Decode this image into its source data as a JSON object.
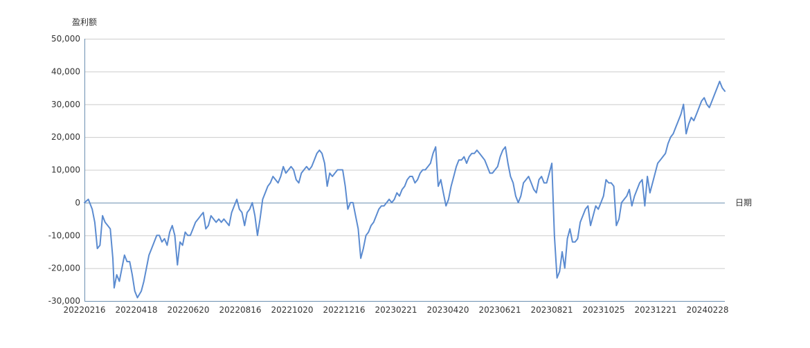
{
  "chart_data": {
    "type": "line",
    "xlabel": "日期",
    "ylabel": "盈利额",
    "ylim": [
      -30000,
      50000
    ],
    "yticks": [
      -30000,
      -20000,
      -10000,
      0,
      10000,
      20000,
      30000,
      40000,
      50000
    ],
    "ytick_labels": [
      "-30,000",
      "-20,000",
      "-10,000",
      "0",
      "10,000",
      "20,000",
      "30,000",
      "40,000",
      "50,000"
    ],
    "xtick_labels": [
      "20220216",
      "20220418",
      "20220620",
      "20220816",
      "20221020",
      "20221216",
      "20230221",
      "20230420",
      "20230621",
      "20230821",
      "20231025",
      "20231221",
      "20240228"
    ],
    "x_count": 496,
    "grid": true,
    "colors": {
      "line": "#5b8bd0",
      "axis": "#6b8fb0",
      "grid": "#cccccc"
    },
    "series": [
      {
        "points": [
          [
            0,
            0
          ],
          [
            3,
            1000
          ],
          [
            6,
            -2000
          ],
          [
            8,
            -6000
          ],
          [
            10,
            -14000
          ],
          [
            12,
            -13000
          ],
          [
            14,
            -4000
          ],
          [
            16,
            -6000
          ],
          [
            18,
            -7000
          ],
          [
            20,
            -8000
          ],
          [
            22,
            -17000
          ],
          [
            23,
            -26000
          ],
          [
            25,
            -22000
          ],
          [
            27,
            -24000
          ],
          [
            29,
            -20000
          ],
          [
            31,
            -16000
          ],
          [
            33,
            -18000
          ],
          [
            35,
            -18000
          ],
          [
            37,
            -22000
          ],
          [
            39,
            -27000
          ],
          [
            41,
            -29000
          ],
          [
            44,
            -27000
          ],
          [
            46,
            -24000
          ],
          [
            48,
            -20000
          ],
          [
            50,
            -16000
          ],
          [
            52,
            -14000
          ],
          [
            54,
            -12000
          ],
          [
            56,
            -10000
          ],
          [
            58,
            -10000
          ],
          [
            60,
            -12000
          ],
          [
            62,
            -11000
          ],
          [
            64,
            -13000
          ],
          [
            66,
            -9000
          ],
          [
            68,
            -7000
          ],
          [
            70,
            -10000
          ],
          [
            72,
            -19000
          ],
          [
            74,
            -12000
          ],
          [
            76,
            -13000
          ],
          [
            78,
            -9000
          ],
          [
            80,
            -10000
          ],
          [
            82,
            -10000
          ],
          [
            84,
            -8000
          ],
          [
            86,
            -6000
          ],
          [
            88,
            -5000
          ],
          [
            90,
            -4000
          ],
          [
            92,
            -3000
          ],
          [
            94,
            -8000
          ],
          [
            96,
            -7000
          ],
          [
            98,
            -4000
          ],
          [
            100,
            -5000
          ],
          [
            102,
            -6000
          ],
          [
            104,
            -5000
          ],
          [
            106,
            -6000
          ],
          [
            108,
            -5000
          ],
          [
            110,
            -6000
          ],
          [
            112,
            -7000
          ],
          [
            114,
            -3000
          ],
          [
            116,
            -1000
          ],
          [
            118,
            1000
          ],
          [
            120,
            -2000
          ],
          [
            122,
            -3000
          ],
          [
            124,
            -7000
          ],
          [
            126,
            -3000
          ],
          [
            128,
            -2000
          ],
          [
            130,
            0
          ],
          [
            132,
            -4000
          ],
          [
            134,
            -10000
          ],
          [
            136,
            -5000
          ],
          [
            138,
            1000
          ],
          [
            140,
            3000
          ],
          [
            142,
            5000
          ],
          [
            144,
            6000
          ],
          [
            146,
            8000
          ],
          [
            148,
            7000
          ],
          [
            150,
            6000
          ],
          [
            152,
            8000
          ],
          [
            154,
            11000
          ],
          [
            156,
            9000
          ],
          [
            158,
            10000
          ],
          [
            160,
            11000
          ],
          [
            162,
            10000
          ],
          [
            164,
            7000
          ],
          [
            166,
            6000
          ],
          [
            168,
            9000
          ],
          [
            170,
            10000
          ],
          [
            172,
            11000
          ],
          [
            174,
            10000
          ],
          [
            176,
            11000
          ],
          [
            178,
            13000
          ],
          [
            180,
            15000
          ],
          [
            182,
            16000
          ],
          [
            184,
            15000
          ],
          [
            186,
            12000
          ],
          [
            188,
            5000
          ],
          [
            190,
            9000
          ],
          [
            192,
            8000
          ],
          [
            194,
            9000
          ],
          [
            196,
            10000
          ],
          [
            198,
            10000
          ],
          [
            200,
            10000
          ],
          [
            202,
            5000
          ],
          [
            204,
            -2000
          ],
          [
            206,
            0
          ],
          [
            208,
            0
          ],
          [
            210,
            -4000
          ],
          [
            212,
            -8000
          ],
          [
            214,
            -17000
          ],
          [
            216,
            -14000
          ],
          [
            218,
            -10000
          ],
          [
            220,
            -9000
          ],
          [
            222,
            -7000
          ],
          [
            224,
            -6000
          ],
          [
            226,
            -4000
          ],
          [
            228,
            -2000
          ],
          [
            230,
            -1000
          ],
          [
            232,
            -1000
          ],
          [
            234,
            0
          ],
          [
            236,
            1000
          ],
          [
            238,
            0
          ],
          [
            240,
            1000
          ],
          [
            242,
            3000
          ],
          [
            244,
            2000
          ],
          [
            246,
            4000
          ],
          [
            248,
            5000
          ],
          [
            250,
            7000
          ],
          [
            252,
            8000
          ],
          [
            254,
            8000
          ],
          [
            256,
            6000
          ],
          [
            258,
            7000
          ],
          [
            260,
            9000
          ],
          [
            262,
            10000
          ],
          [
            264,
            10000
          ],
          [
            266,
            11000
          ],
          [
            268,
            12000
          ],
          [
            270,
            15000
          ],
          [
            272,
            17000
          ],
          [
            274,
            5000
          ],
          [
            276,
            7000
          ],
          [
            278,
            3000
          ],
          [
            280,
            -1000
          ],
          [
            282,
            1000
          ],
          [
            284,
            5000
          ],
          [
            286,
            8000
          ],
          [
            288,
            11000
          ],
          [
            290,
            13000
          ],
          [
            292,
            13000
          ],
          [
            294,
            14000
          ],
          [
            296,
            12000
          ],
          [
            298,
            14000
          ],
          [
            300,
            15000
          ],
          [
            302,
            15000
          ],
          [
            304,
            16000
          ],
          [
            306,
            15000
          ],
          [
            308,
            14000
          ],
          [
            310,
            13000
          ],
          [
            312,
            11000
          ],
          [
            314,
            9000
          ],
          [
            316,
            9000
          ],
          [
            318,
            10000
          ],
          [
            320,
            11000
          ],
          [
            322,
            14000
          ],
          [
            324,
            16000
          ],
          [
            326,
            17000
          ],
          [
            328,
            12000
          ],
          [
            330,
            8000
          ],
          [
            332,
            6000
          ],
          [
            334,
            2000
          ],
          [
            336,
            0
          ],
          [
            338,
            2000
          ],
          [
            340,
            6000
          ],
          [
            342,
            7000
          ],
          [
            344,
            8000
          ],
          [
            346,
            6000
          ],
          [
            348,
            4000
          ],
          [
            350,
            3000
          ],
          [
            352,
            7000
          ],
          [
            354,
            8000
          ],
          [
            356,
            6000
          ],
          [
            358,
            6000
          ],
          [
            360,
            9000
          ],
          [
            362,
            12000
          ],
          [
            364,
            -10000
          ],
          [
            366,
            -23000
          ],
          [
            368,
            -21000
          ],
          [
            370,
            -15000
          ],
          [
            372,
            -20000
          ],
          [
            374,
            -11000
          ],
          [
            376,
            -8000
          ],
          [
            378,
            -12000
          ],
          [
            380,
            -12000
          ],
          [
            382,
            -11000
          ],
          [
            384,
            -6000
          ],
          [
            386,
            -4000
          ],
          [
            388,
            -2000
          ],
          [
            390,
            -1000
          ],
          [
            392,
            -7000
          ],
          [
            394,
            -4000
          ],
          [
            396,
            -1000
          ],
          [
            398,
            -2000
          ],
          [
            400,
            0
          ],
          [
            402,
            2000
          ],
          [
            404,
            7000
          ],
          [
            406,
            6000
          ],
          [
            408,
            6000
          ],
          [
            410,
            5000
          ],
          [
            412,
            -7000
          ],
          [
            414,
            -5000
          ],
          [
            416,
            0
          ],
          [
            418,
            1000
          ],
          [
            420,
            2000
          ],
          [
            422,
            4000
          ],
          [
            424,
            -1000
          ],
          [
            426,
            2000
          ],
          [
            428,
            4000
          ],
          [
            430,
            6000
          ],
          [
            432,
            7000
          ],
          [
            434,
            -1000
          ],
          [
            436,
            8000
          ],
          [
            438,
            3000
          ],
          [
            440,
            6000
          ],
          [
            442,
            9000
          ],
          [
            444,
            12000
          ],
          [
            446,
            13000
          ],
          [
            448,
            14000
          ],
          [
            450,
            15000
          ],
          [
            452,
            18000
          ],
          [
            454,
            20000
          ],
          [
            456,
            21000
          ],
          [
            458,
            23000
          ],
          [
            460,
            25000
          ],
          [
            462,
            27000
          ],
          [
            464,
            30000
          ],
          [
            466,
            21000
          ],
          [
            468,
            24000
          ],
          [
            470,
            26000
          ],
          [
            472,
            25000
          ],
          [
            474,
            27000
          ],
          [
            476,
            29000
          ],
          [
            478,
            31000
          ],
          [
            480,
            32000
          ],
          [
            482,
            30000
          ],
          [
            484,
            29000
          ],
          [
            486,
            31000
          ],
          [
            488,
            33000
          ],
          [
            490,
            35000
          ],
          [
            492,
            37000
          ],
          [
            494,
            35000
          ],
          [
            496,
            34000
          ]
        ]
      }
    ]
  }
}
